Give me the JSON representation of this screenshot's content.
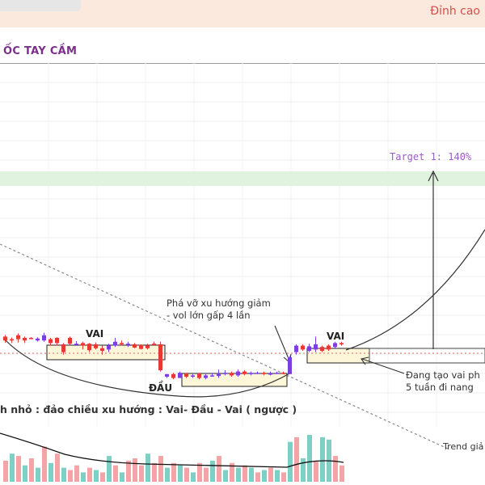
{
  "header": {
    "top_right_text": "Đỉnh cao",
    "title": "ỐC TAY CẦM"
  },
  "colors": {
    "up": "#7b3fe0",
    "down": "#e53935",
    "vol_up": "#7fd0c4",
    "vol_down": "#f4a3a6",
    "annotation": "#9a5cc6",
    "zone": "#fdf6d9",
    "target_band": "#dff3df"
  },
  "chart_data": {
    "type": "candlestick",
    "title": "",
    "xlabel": "",
    "ylabel": "",
    "grid": true,
    "legend": "none",
    "candles": [
      {
        "o": 0.6,
        "c": 0.3,
        "h": 0.72,
        "l": 0.12
      },
      {
        "o": 0.4,
        "c": 0.3,
        "h": 0.52,
        "l": 0.1
      },
      {
        "o": 0.7,
        "c": 0.4,
        "h": 0.85,
        "l": 0.15
      },
      {
        "o": 0.5,
        "c": 0.3,
        "h": 0.6,
        "l": 0.1
      },
      {
        "o": 0.5,
        "c": 0.45,
        "h": 0.55,
        "l": 0.4
      },
      {
        "o": 0.3,
        "c": 0.45,
        "h": 0.55,
        "l": 0.2
      },
      {
        "o": 0.3,
        "c": 0.7,
        "h": 0.9,
        "l": 0.2
      },
      {
        "o": 0.4,
        "c": 0.1,
        "h": 0.5,
        "l": -0.1
      },
      {
        "o": 0.5,
        "c": 0.1,
        "h": 0.55,
        "l": -0.1
      },
      {
        "o": 0.0,
        "c": -0.6,
        "h": 0.1,
        "l": -0.8
      },
      {
        "o": 0.5,
        "c": 0.05,
        "h": 0.6,
        "l": -0.05
      },
      {
        "o": 0.0,
        "c": 0.05,
        "h": 0.25,
        "l": -0.1
      },
      {
        "o": 0.1,
        "c": -0.1,
        "h": 0.2,
        "l": -0.4
      },
      {
        "o": 0.05,
        "c": -0.45,
        "h": 0.1,
        "l": -0.6
      },
      {
        "o": 0.0,
        "c": -0.3,
        "h": 0.15,
        "l": -0.4
      },
      {
        "o": -0.3,
        "c": -0.5,
        "h": -0.1,
        "l": -0.8
      },
      {
        "o": -0.4,
        "c": -0.1,
        "h": 0.05,
        "l": -0.6
      },
      {
        "o": -0.1,
        "c": 0.2,
        "h": 0.5,
        "l": -0.2
      },
      {
        "o": 0.1,
        "c": 0.0,
        "h": 0.3,
        "l": -0.1
      },
      {
        "o": 0.0,
        "c": 0.05,
        "h": 0.2,
        "l": -0.2
      },
      {
        "o": 0.0,
        "c": -0.25,
        "h": 0.1,
        "l": -0.3
      },
      {
        "o": -0.05,
        "c": -0.35,
        "h": 0.0,
        "l": -0.4
      },
      {
        "o": -0.1,
        "c": -0.3,
        "h": 0.05,
        "l": -0.4
      },
      {
        "o": 0.05,
        "c": -0.05,
        "h": 0.2,
        "l": -0.1
      },
      {
        "o": 0.0,
        "c": -2.0,
        "h": 0.2,
        "l": -2.1
      },
      {
        "o": -2.5,
        "c": -2.3,
        "h": -2.3,
        "l": -2.6
      },
      {
        "o": -2.3,
        "c": -2.6,
        "h": -2.2,
        "l": -2.7
      },
      {
        "o": -2.6,
        "c": -2.2,
        "h": -2.1,
        "l": -2.6
      },
      {
        "o": -2.3,
        "c": -2.5,
        "h": -2.2,
        "l": -2.6
      },
      {
        "o": -2.5,
        "c": -2.4,
        "h": -2.3,
        "l": -2.6
      },
      {
        "o": -2.3,
        "c": -2.6,
        "h": -2.2,
        "l": -2.7
      },
      {
        "o": -2.6,
        "c": -2.4,
        "h": -2.3,
        "l": -2.7
      },
      {
        "o": -2.4,
        "c": -2.4,
        "h": -2.2,
        "l": -2.5
      },
      {
        "o": -2.45,
        "c": -2.3,
        "h": -1.95,
        "l": -2.6
      },
      {
        "o": -2.3,
        "c": -2.2,
        "h": -2.0,
        "l": -2.4
      },
      {
        "o": -2.2,
        "c": -2.4,
        "h": -2.1,
        "l": -2.5
      },
      {
        "o": -2.4,
        "c": -2.1,
        "h": -1.95,
        "l": -2.5
      },
      {
        "o": -2.1,
        "c": -2.3,
        "h": -2.0,
        "l": -2.4
      },
      {
        "o": -2.3,
        "c": -2.2,
        "h": -2.1,
        "l": -2.4
      },
      {
        "o": -2.2,
        "c": -2.2,
        "h": -2.1,
        "l": -2.3
      },
      {
        "o": -2.2,
        "c": -2.3,
        "h": -2.1,
        "l": -2.4
      },
      {
        "o": -2.3,
        "c": -2.25,
        "h": -2.1,
        "l": -2.4
      },
      {
        "o": -2.25,
        "c": -2.2,
        "h": -2.1,
        "l": -2.3
      },
      {
        "o": -2.2,
        "c": -2.25,
        "h": -2.1,
        "l": -2.3
      },
      {
        "o": -2.3,
        "c": -1.0,
        "h": -0.9,
        "l": -2.3
      },
      {
        "o": -0.6,
        "c": -0.1,
        "h": 0.0,
        "l": -0.8
      },
      {
        "o": -0.1,
        "c": -0.4,
        "h": 0.0,
        "l": -0.5
      },
      {
        "o": -0.5,
        "c": -0.15,
        "h": 0.05,
        "l": -0.6
      },
      {
        "o": -0.4,
        "c": 0.0,
        "h": 0.6,
        "l": -0.6
      },
      {
        "o": -0.2,
        "c": -0.5,
        "h": -0.1,
        "l": -0.6
      },
      {
        "o": -0.1,
        "c": -0.4,
        "h": 0.0,
        "l": -0.5
      },
      {
        "o": -0.2,
        "c": 0.1,
        "h": 0.2,
        "l": -0.3
      },
      {
        "o": 0.1,
        "c": 0.0,
        "h": 0.2,
        "l": -0.1
      }
    ],
    "volume": [
      {
        "v": 0.45,
        "up": false
      },
      {
        "v": 0.6,
        "up": true
      },
      {
        "v": 0.55,
        "up": false
      },
      {
        "v": 0.35,
        "up": true
      },
      {
        "v": 0.5,
        "up": false
      },
      {
        "v": 0.3,
        "up": true
      },
      {
        "v": 0.75,
        "up": false
      },
      {
        "v": 0.4,
        "up": true
      },
      {
        "v": 0.6,
        "up": false
      },
      {
        "v": 0.3,
        "up": true
      },
      {
        "v": 0.25,
        "up": false
      },
      {
        "v": 0.35,
        "up": false
      },
      {
        "v": 0.2,
        "up": true
      },
      {
        "v": 0.3,
        "up": false
      },
      {
        "v": 0.25,
        "up": true
      },
      {
        "v": 0.2,
        "up": false
      },
      {
        "v": 0.55,
        "up": true
      },
      {
        "v": 0.35,
        "up": false
      },
      {
        "v": 0.2,
        "up": true
      },
      {
        "v": 0.45,
        "up": false
      },
      {
        "v": 0.5,
        "up": false
      },
      {
        "v": 0.35,
        "up": false
      },
      {
        "v": 0.6,
        "up": true
      },
      {
        "v": 0.4,
        "up": false
      },
      {
        "v": 0.55,
        "up": false
      },
      {
        "v": 0.3,
        "up": true
      },
      {
        "v": 0.4,
        "up": false
      },
      {
        "v": 0.35,
        "up": true
      },
      {
        "v": 0.3,
        "up": false
      },
      {
        "v": 0.2,
        "up": true
      },
      {
        "v": 0.4,
        "up": false
      },
      {
        "v": 0.3,
        "up": false
      },
      {
        "v": 0.45,
        "up": true
      },
      {
        "v": 0.55,
        "up": false
      },
      {
        "v": 0.25,
        "up": true
      },
      {
        "v": 0.4,
        "up": false
      },
      {
        "v": 0.3,
        "up": true
      },
      {
        "v": 0.35,
        "up": false
      },
      {
        "v": 0.3,
        "up": true
      },
      {
        "v": 0.2,
        "up": false
      },
      {
        "v": 0.25,
        "up": true
      },
      {
        "v": 0.3,
        "up": false
      },
      {
        "v": 0.25,
        "up": true
      },
      {
        "v": 0.2,
        "up": false
      },
      {
        "v": 0.85,
        "up": true
      },
      {
        "v": 0.95,
        "up": false
      },
      {
        "v": 0.5,
        "up": true
      },
      {
        "v": 1.0,
        "up": true
      },
      {
        "v": 0.45,
        "up": false
      },
      {
        "v": 0.95,
        "up": true
      },
      {
        "v": 0.9,
        "up": true
      },
      {
        "v": 0.55,
        "up": false
      },
      {
        "v": 0.35,
        "up": false
      }
    ],
    "annotations": {
      "target": "Target 1: 140%",
      "breakout_line1": "Phá vỡ xu hướng giảm",
      "breakout_line2": "- vol lớn gấp 4 lần",
      "vai_left": "VAI",
      "dau": "ĐẦU",
      "vai_right": "VAI",
      "forming_line1": "Đang tạo vai ph",
      "forming_line2": "5 tuần đi nang",
      "pattern_caption": "h nhỏ : đảo chiều xu hướng : Vai- Đầu - Vai ( ngược )",
      "trend_label": "Trend giả"
    }
  }
}
